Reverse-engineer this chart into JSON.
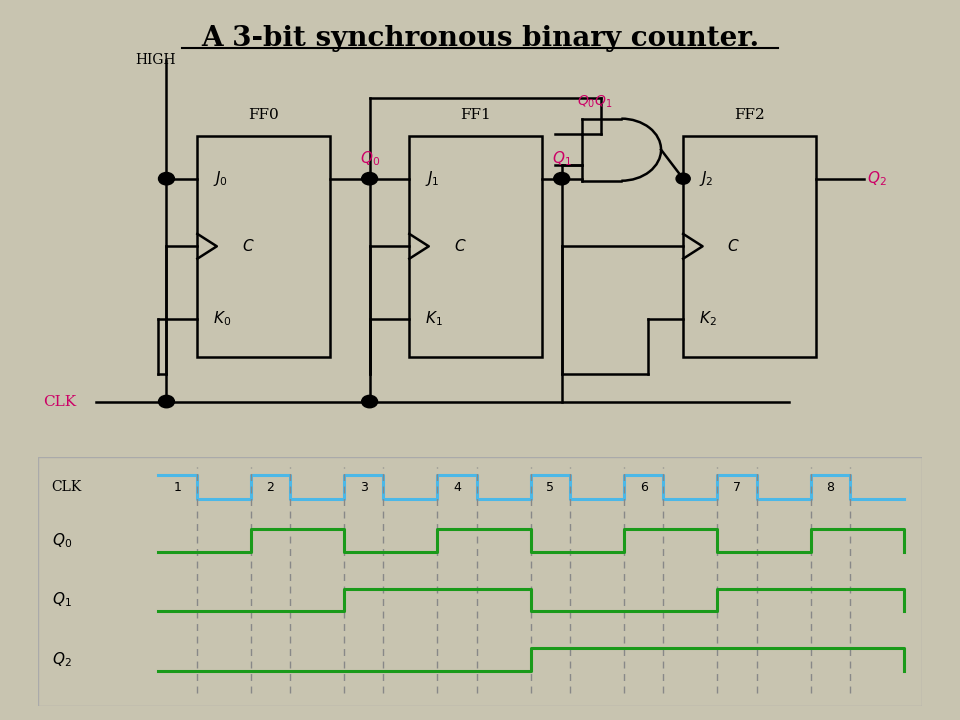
{
  "title": "A 3-bit synchronous binary counter.",
  "bg_color": "#c8c4b0",
  "circuit_bg": "#ffffff",
  "timing_bg": "#ffffff",
  "clk_color": "#4bb8e8",
  "signal_color": "#1a9a1a",
  "dashed_color": "#888888",
  "text_color": "#000000",
  "pink_color": "#cc0066",
  "ff_labels": [
    "FF0",
    "FF1",
    "FF2"
  ],
  "high_label": "HIGH",
  "clk_numbers": [
    "1",
    "2",
    "3",
    "4",
    "5",
    "6",
    "7",
    "8"
  ]
}
